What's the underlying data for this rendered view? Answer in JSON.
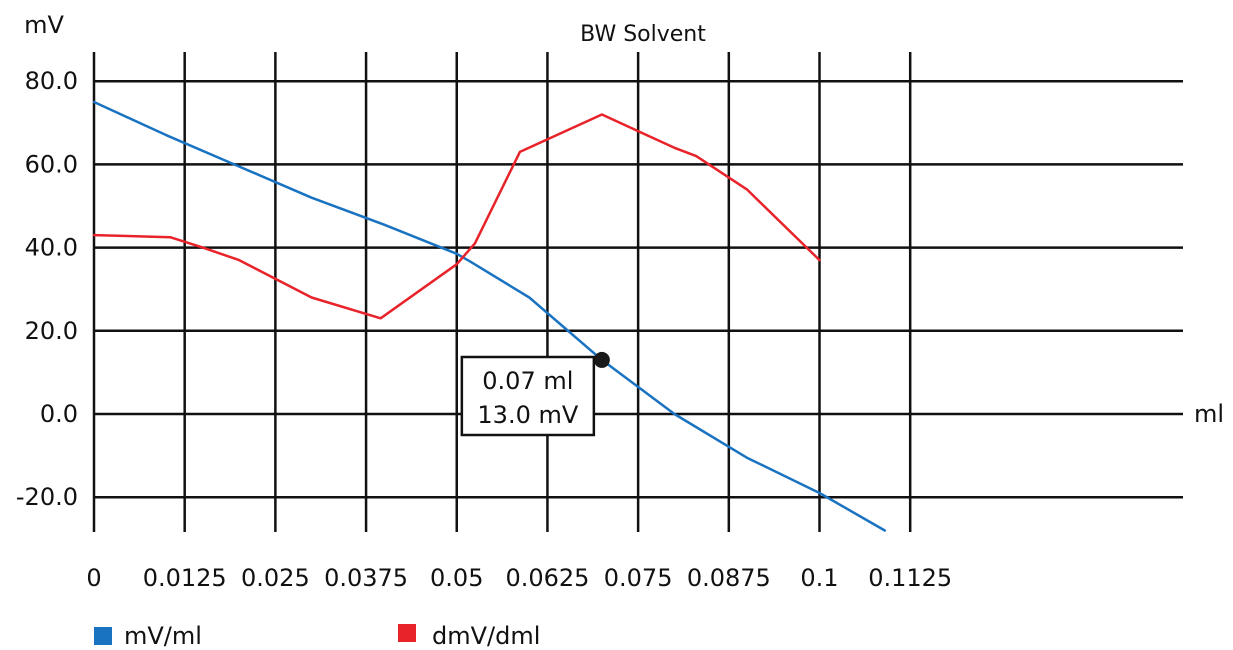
{
  "chart_data": {
    "type": "line",
    "title": "BW Solvent",
    "ylabel": "mV",
    "xlabel": "ml",
    "xlim": [
      0,
      0.12
    ],
    "ylim": [
      -30,
      82
    ],
    "grid": true,
    "x_ticks": [
      0,
      0.0125,
      0.025,
      0.0375,
      0.05,
      0.0625,
      0.075,
      0.0875,
      0.1,
      0.1125
    ],
    "x_tick_labels": [
      "0",
      "0.0125",
      "0.025",
      "0.0375",
      "0.05",
      "0.0625",
      "0.075",
      "0.0875",
      "0.1",
      "0.1125"
    ],
    "y_ticks": [
      80,
      60,
      40,
      20,
      0,
      -20
    ],
    "y_tick_labels": [
      "80.0",
      "60.0",
      "40.0",
      "20.0",
      "0.0",
      "-20.0"
    ],
    "legend_position": "bottom-left",
    "series": [
      {
        "name": "mV/ml",
        "color": "#1a73c1",
        "points": [
          [
            0,
            75
          ],
          [
            0.01,
            67
          ],
          [
            0.02,
            59.5
          ],
          [
            0.03,
            52
          ],
          [
            0.04,
            45.5
          ],
          [
            0.05,
            38.5
          ],
          [
            0.052,
            36.5
          ],
          [
            0.06,
            28
          ],
          [
            0.07,
            13
          ],
          [
            0.08,
            0
          ],
          [
            0.09,
            -10.5
          ],
          [
            0.1,
            -19
          ],
          [
            0.109,
            -28
          ]
        ]
      },
      {
        "name": "dmV/dml",
        "color": "#e8232a",
        "points": [
          [
            0,
            43
          ],
          [
            0.0105,
            42.5
          ],
          [
            0.015,
            40
          ],
          [
            0.02,
            37
          ],
          [
            0.03,
            28
          ],
          [
            0.0395,
            23
          ],
          [
            0.05,
            36
          ],
          [
            0.0525,
            41
          ],
          [
            0.0587,
            63
          ],
          [
            0.07,
            72
          ],
          [
            0.08,
            64
          ],
          [
            0.083,
            62
          ],
          [
            0.09,
            54
          ],
          [
            0.1,
            37
          ]
        ]
      }
    ],
    "annotation": {
      "x": 0.07,
      "y": 13.0,
      "line1": "0.07 ml",
      "line2": "13.0 mV",
      "text_color": "#1a73c1"
    }
  }
}
